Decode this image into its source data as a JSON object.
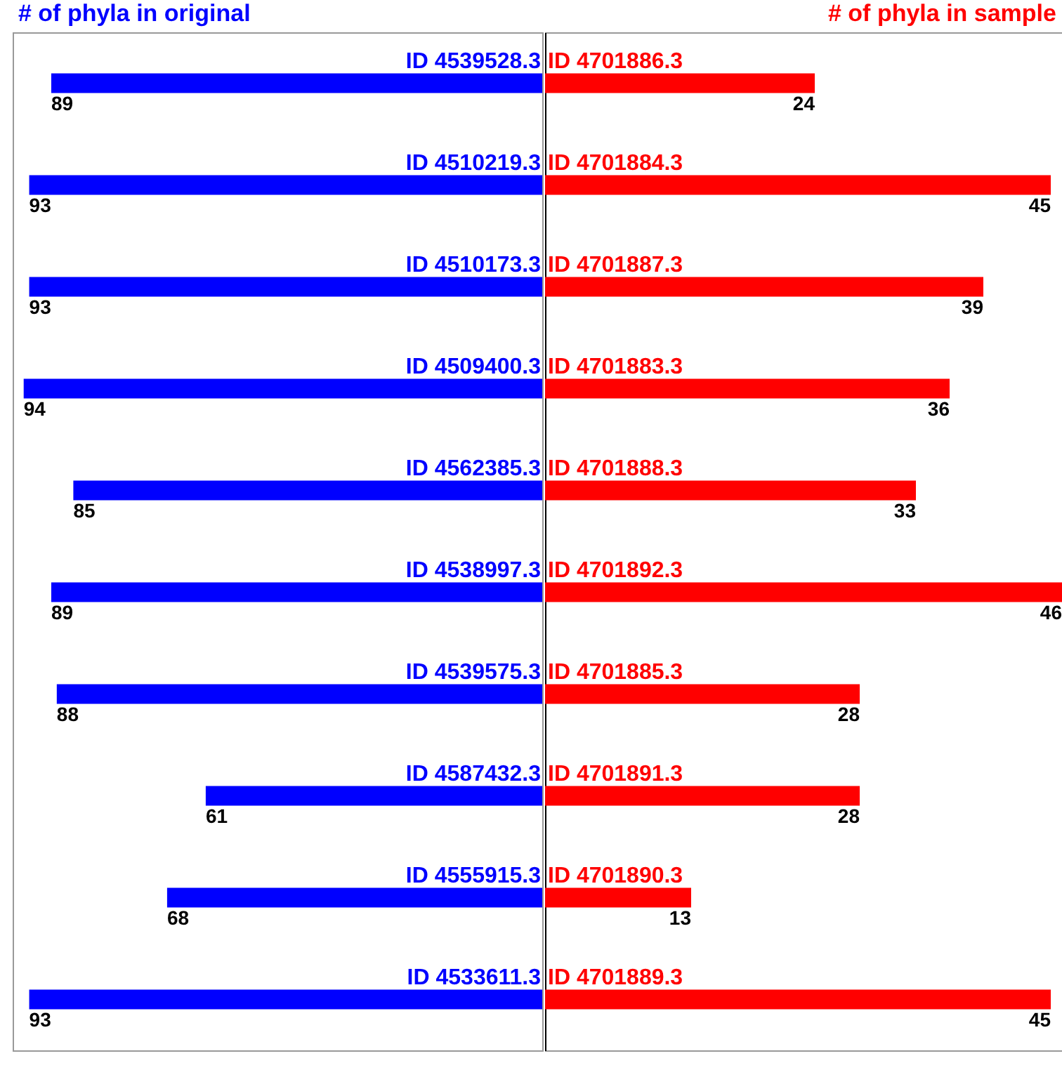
{
  "chart_data": [
    {
      "type": "bar",
      "orientation": "horizontal",
      "title": "# of phyla in original",
      "categories": [
        "ID 4539528.3",
        "ID 4510219.3",
        "ID 4510173.3",
        "ID 4509400.3",
        "ID 4562385.3",
        "ID 4538997.3",
        "ID 4539575.3",
        "ID 4587432.3",
        "ID 4555915.3",
        "ID 4533611.3"
      ],
      "values": [
        89,
        93,
        93,
        94,
        85,
        89,
        88,
        61,
        68,
        93
      ],
      "color": "#0000ff",
      "data_labels": true,
      "xlim": [
        96,
        0
      ],
      "tick_labels": false
    },
    {
      "type": "bar",
      "orientation": "horizontal",
      "title": "# of phyla in sample",
      "categories": [
        "ID 4701886.3",
        "ID 4701884.3",
        "ID 4701887.3",
        "ID 4701883.3",
        "ID 4701888.3",
        "ID 4701892.3",
        "ID 4701885.3",
        "ID 4701891.3",
        "ID 4701890.3",
        "ID 4701889.3"
      ],
      "values": [
        24,
        45,
        39,
        36,
        33,
        46,
        28,
        28,
        13,
        45
      ],
      "color": "#ff0000",
      "data_labels": true,
      "xlim": [
        0,
        46
      ],
      "tick_labels": false
    }
  ]
}
